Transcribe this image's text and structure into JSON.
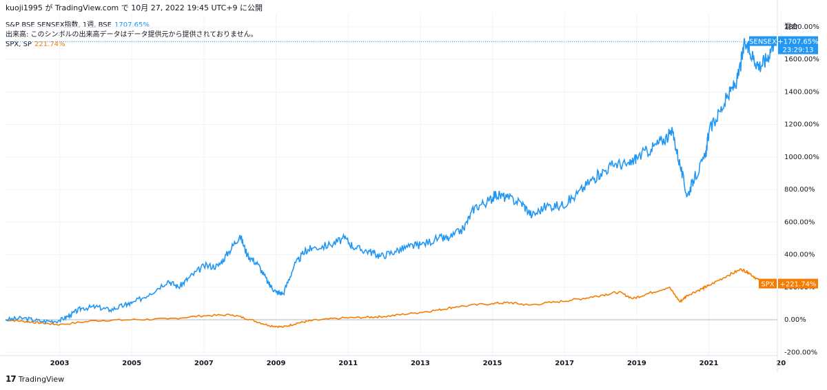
{
  "header": {
    "published": "kuoji1995 が TradingView.com で 10月 27, 2022 19:45 UTC+9 に公開"
  },
  "legend": {
    "sensex_label": "S&P BSE SENSEX指数, 1週, BSE",
    "sensex_value": "1707.65%",
    "volume_note": "出来高: このシンボルの出来高データはデータ提供元から提供されておりません。",
    "spx_label": "SPX, SP",
    "spx_value": "221.74%"
  },
  "scale_mode": "混合",
  "footer": {
    "brand": "TradingView",
    "logo": "17"
  },
  "colors": {
    "sensex": "#2196f3",
    "spx": "#f57c00",
    "grid": "#f0f3fa",
    "zero": "#b2b5be"
  },
  "chart_data": {
    "type": "line",
    "x_ticks": [
      "2003",
      "2005",
      "2007",
      "2009",
      "2011",
      "2013",
      "2015",
      "2017",
      "2019",
      "2021",
      "20"
    ],
    "y_ticks": [
      "-200.00%",
      "0.00%",
      "200.00%",
      "400.00%",
      "600.00%",
      "800.00%",
      "1000.00%",
      "1200.00%",
      "1400.00%",
      "1600.00%",
      "1800.00%"
    ],
    "ylim": [
      -220,
      1880
    ],
    "xlim": [
      2001.5,
      2022.9
    ],
    "series": [
      {
        "name": "SENSEX",
        "badge_value": "+1707.65%",
        "badge_time": "23:29:13",
        "x": [
          2001.5,
          2002.0,
          2002.5,
          2003.0,
          2003.3,
          2003.6,
          2004.0,
          2004.4,
          2004.8,
          2005.0,
          2005.5,
          2006.0,
          2006.3,
          2006.6,
          2007.0,
          2007.4,
          2007.7,
          2008.0,
          2008.2,
          2008.5,
          2008.8,
          2009.0,
          2009.2,
          2009.5,
          2009.8,
          2010.0,
          2010.5,
          2010.9,
          2011.2,
          2011.6,
          2011.9,
          2012.3,
          2012.7,
          2013.0,
          2013.5,
          2013.8,
          2014.2,
          2014.5,
          2014.9,
          2015.1,
          2015.4,
          2015.8,
          2016.1,
          2016.5,
          2016.9,
          2017.3,
          2017.7,
          2018.0,
          2018.4,
          2018.8,
          2019.0,
          2019.4,
          2019.7,
          2020.0,
          2020.2,
          2020.4,
          2020.6,
          2020.9,
          2021.0,
          2021.3,
          2021.6,
          2021.8,
          2022.0,
          2022.2,
          2022.4,
          2022.6,
          2022.8
        ],
        "y": [
          0,
          10,
          -10,
          -5,
          30,
          70,
          80,
          60,
          90,
          100,
          160,
          240,
          200,
          260,
          330,
          330,
          420,
          520,
          400,
          340,
          220,
          170,
          160,
          330,
          420,
          440,
          460,
          500,
          440,
          420,
          390,
          420,
          450,
          460,
          500,
          500,
          560,
          690,
          730,
          770,
          750,
          720,
          640,
          700,
          700,
          760,
          850,
          900,
          960,
          950,
          1000,
          1050,
          1100,
          1150,
          950,
          760,
          870,
          1000,
          1150,
          1280,
          1400,
          1480,
          1700,
          1620,
          1560,
          1600,
          1708
        ]
      },
      {
        "name": "SPX",
        "badge_value": "+221.74%",
        "x": [
          2001.5,
          2002.0,
          2002.5,
          2003.0,
          2004.0,
          2005.0,
          2006.0,
          2007.0,
          2007.8,
          2008.3,
          2008.8,
          2009.2,
          2009.6,
          2010.0,
          2010.8,
          2011.5,
          2012.0,
          2012.8,
          2013.5,
          2014.0,
          2015.0,
          2015.5,
          2016.0,
          2016.8,
          2017.5,
          2018.0,
          2018.5,
          2018.9,
          2019.3,
          2019.9,
          2020.2,
          2020.4,
          2020.8,
          2021.0,
          2021.5,
          2021.9,
          2022.1,
          2022.4,
          2022.8
        ],
        "y": [
          0,
          -10,
          -20,
          -30,
          -5,
          0,
          5,
          25,
          30,
          0,
          -35,
          -45,
          -20,
          -5,
          10,
          15,
          20,
          40,
          60,
          80,
          100,
          105,
          90,
          110,
          130,
          150,
          170,
          130,
          160,
          200,
          110,
          150,
          190,
          210,
          270,
          310,
          290,
          240,
          222
        ]
      }
    ]
  }
}
